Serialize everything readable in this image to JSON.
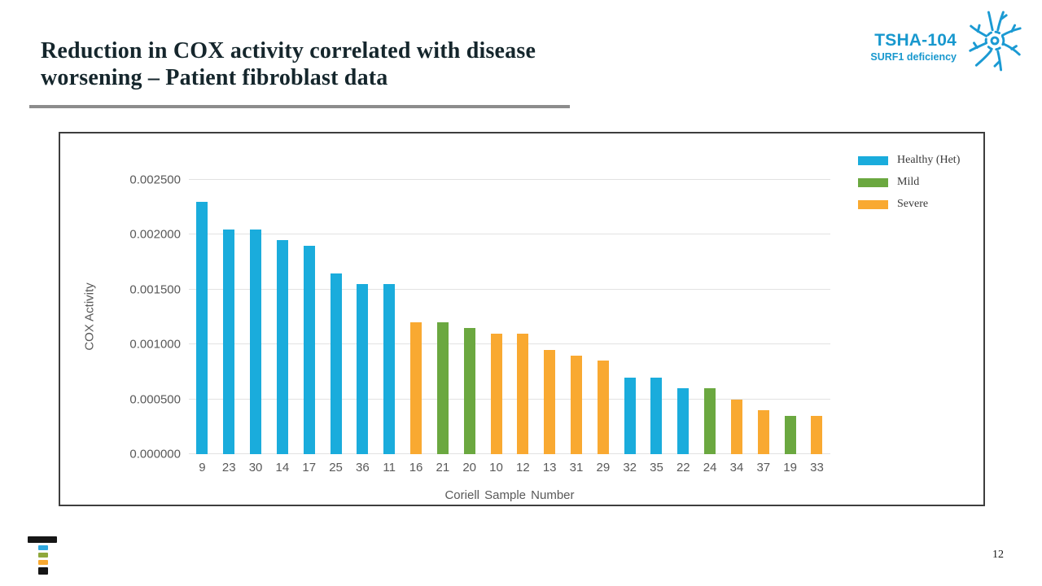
{
  "slide": {
    "title": "Reduction in COX activity correlated with disease worsening – Patient fibroblast data",
    "page_number": "12"
  },
  "brand": {
    "program": "TSHA-104",
    "subtitle": "SURF1 deficiency",
    "accent_color": "#1898ce",
    "icons": [
      "neuron-icon",
      "taysha-t-logo"
    ]
  },
  "chart_data": {
    "type": "bar",
    "title": "",
    "xlabel": "Coriell Sample Number",
    "ylabel": "COX Activity",
    "ylim": [
      0,
      0.0025
    ],
    "grid": "horizontal",
    "legend_position": "top-right",
    "yticks": [
      {
        "value": 0.0,
        "label": "0.000000"
      },
      {
        "value": 0.0005,
        "label": "0.000500"
      },
      {
        "value": 0.001,
        "label": "0.001000"
      },
      {
        "value": 0.0015,
        "label": "0.001500"
      },
      {
        "value": 0.002,
        "label": "0.002000"
      },
      {
        "value": 0.0025,
        "label": "0.002500"
      }
    ],
    "legend": [
      {
        "key": "healthy",
        "label": "Healthy (Het)",
        "color": "#1aacdc"
      },
      {
        "key": "mild",
        "label": "Mild",
        "color": "#6ba840"
      },
      {
        "key": "severe",
        "label": "Severe",
        "color": "#f9a931"
      }
    ],
    "points": [
      {
        "sample": "9",
        "group": "healthy",
        "value": 0.0023
      },
      {
        "sample": "23",
        "group": "healthy",
        "value": 0.00205
      },
      {
        "sample": "30",
        "group": "healthy",
        "value": 0.00205
      },
      {
        "sample": "14",
        "group": "healthy",
        "value": 0.00195
      },
      {
        "sample": "17",
        "group": "healthy",
        "value": 0.0019
      },
      {
        "sample": "25",
        "group": "healthy",
        "value": 0.00165
      },
      {
        "sample": "36",
        "group": "healthy",
        "value": 0.00155
      },
      {
        "sample": "11",
        "group": "healthy",
        "value": 0.00155
      },
      {
        "sample": "16",
        "group": "severe",
        "value": 0.0012
      },
      {
        "sample": "21",
        "group": "mild",
        "value": 0.0012
      },
      {
        "sample": "20",
        "group": "mild",
        "value": 0.00115
      },
      {
        "sample": "10",
        "group": "severe",
        "value": 0.0011
      },
      {
        "sample": "12",
        "group": "severe",
        "value": 0.0011
      },
      {
        "sample": "13",
        "group": "severe",
        "value": 0.00095
      },
      {
        "sample": "31",
        "group": "severe",
        "value": 0.0009
      },
      {
        "sample": "29",
        "group": "severe",
        "value": 0.00085
      },
      {
        "sample": "32",
        "group": "healthy",
        "value": 0.0007
      },
      {
        "sample": "35",
        "group": "healthy",
        "value": 0.0007
      },
      {
        "sample": "22",
        "group": "healthy",
        "value": 0.0006
      },
      {
        "sample": "24",
        "group": "mild",
        "value": 0.0006
      },
      {
        "sample": "34",
        "group": "severe",
        "value": 0.0005
      },
      {
        "sample": "37",
        "group": "severe",
        "value": 0.0004
      },
      {
        "sample": "19",
        "group": "mild",
        "value": 0.00035
      },
      {
        "sample": "33",
        "group": "severe",
        "value": 0.00035
      }
    ]
  }
}
